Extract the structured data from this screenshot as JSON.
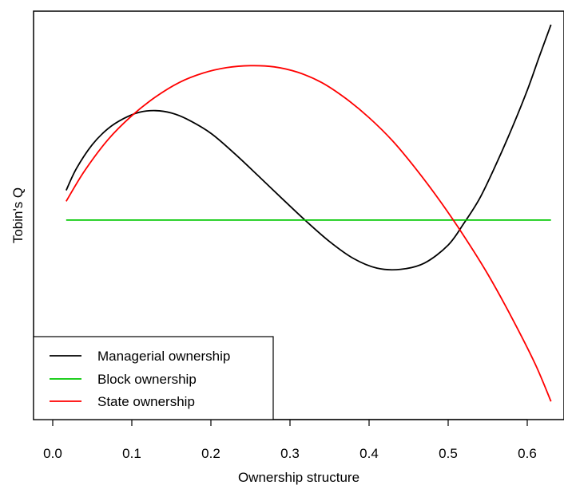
{
  "chart_data": {
    "type": "line",
    "title": "",
    "xlabel": "Ownership structure",
    "ylabel": "Tobin's Q",
    "xlim": [
      -0.008,
      0.64
    ],
    "ylim": [
      0,
      1
    ],
    "x_ticks": [
      "0.0",
      "0.1",
      "0.2",
      "0.3",
      "0.4",
      "0.5",
      "0.6"
    ],
    "y_ticks_shown": false,
    "grid": false,
    "legend_position": "bottom-left",
    "series": [
      {
        "name": "Managerial ownership",
        "color": "#000000",
        "x": [
          0.017,
          0.03,
          0.05,
          0.07,
          0.09,
          0.11,
          0.13,
          0.15,
          0.17,
          0.2,
          0.23,
          0.26,
          0.29,
          0.32,
          0.35,
          0.38,
          0.41,
          0.44,
          0.47,
          0.5,
          0.52,
          0.54,
          0.56,
          0.58,
          0.6,
          0.615,
          0.63
        ],
        "y": [
          0.564,
          0.62,
          0.681,
          0.722,
          0.748,
          0.764,
          0.768,
          0.762,
          0.746,
          0.71,
          0.658,
          0.601,
          0.543,
          0.486,
          0.433,
          0.39,
          0.365,
          0.362,
          0.378,
          0.424,
          0.48,
          0.544,
          0.628,
          0.72,
          0.82,
          0.905,
          0.988
        ]
      },
      {
        "name": "Block ownership",
        "color": "#00c800",
        "x": [
          0.017,
          0.63
        ],
        "y": [
          0.488,
          0.488
        ]
      },
      {
        "name": "State ownership",
        "color": "#ff0000",
        "x": [
          0.017,
          0.04,
          0.07,
          0.1,
          0.13,
          0.16,
          0.19,
          0.22,
          0.25,
          0.28,
          0.31,
          0.34,
          0.37,
          0.4,
          0.43,
          0.46,
          0.49,
          0.52,
          0.55,
          0.58,
          0.61,
          0.63
        ],
        "y": [
          0.536,
          0.613,
          0.694,
          0.755,
          0.803,
          0.84,
          0.864,
          0.878,
          0.883,
          0.88,
          0.866,
          0.84,
          0.8,
          0.75,
          0.69,
          0.617,
          0.536,
          0.447,
          0.35,
          0.24,
          0.12,
          0.024
        ]
      }
    ]
  }
}
